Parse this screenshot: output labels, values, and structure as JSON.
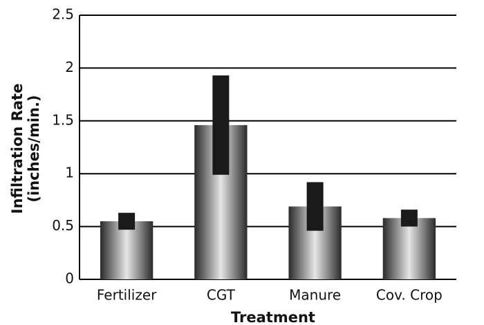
{
  "chart_data": {
    "type": "bar",
    "categories": [
      "Fertilizer",
      "CGT",
      "Manure",
      "Cov. Crop"
    ],
    "values": [
      0.55,
      1.46,
      0.69,
      0.58
    ],
    "errors": [
      0.08,
      0.47,
      0.23,
      0.08
    ],
    "xlabel": "Treatment",
    "ylabel": [
      "Infiltration Rate",
      "(inches/min.)"
    ],
    "ylim": [
      0,
      2.5
    ],
    "yticks": [
      0,
      0.5,
      1,
      1.5,
      2,
      2.5
    ],
    "grid": true,
    "color": "#888888",
    "error_color": "#1a1a1a"
  }
}
